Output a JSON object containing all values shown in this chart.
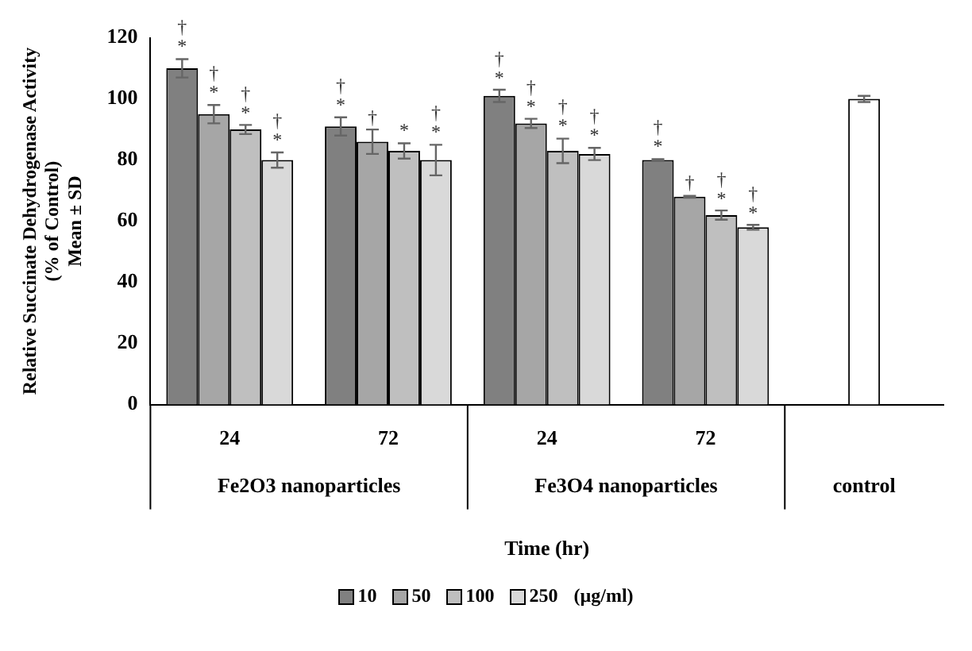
{
  "chart_data": {
    "type": "bar",
    "categories": [
      "24",
      "72",
      "24",
      "72",
      null
    ],
    "xlabel": "Time (hr)",
    "ylabel": "Relative Succinate Dehydrogenase Activity\n(% of Control)\nMean ± SD",
    "legend_title": "(µg/ml)",
    "annotations": [
      "Fe2O3 nanoparticles",
      "Fe3O4 nanoparticles",
      "control"
    ],
    "series": [
      {
        "name": "10",
        "color": "#808080",
        "values": [
          110,
          91,
          101,
          80,
          null
        ],
        "errors": [
          3,
          3,
          2,
          0.3,
          null
        ],
        "value_labels": [
          "†\n*",
          "†\n*",
          "†\n*",
          "†\n*",
          null
        ]
      },
      {
        "name": "50",
        "color": "#a6a6a6",
        "values": [
          95,
          86,
          92,
          68,
          null
        ],
        "errors": [
          3,
          4,
          1.5,
          0.3,
          null
        ],
        "value_labels": [
          "†\n*",
          "†",
          "†\n*",
          "†",
          null
        ]
      },
      {
        "name": "100",
        "color": "#bfbfbf",
        "values": [
          90,
          83,
          83,
          62,
          null
        ],
        "errors": [
          1.5,
          2.5,
          4,
          1.5,
          null
        ],
        "value_labels": [
          "†\n*",
          "*",
          "†\n*",
          "†\n*",
          null
        ]
      },
      {
        "name": "250",
        "color": "#d9d9d9",
        "values": [
          80,
          80,
          82,
          58,
          null
        ],
        "errors": [
          2.5,
          5,
          2,
          0.8,
          null
        ],
        "value_labels": [
          "†\n*",
          "†\n*",
          "†\n*",
          "†\n*",
          null
        ]
      },
      {
        "color": "#ffffff",
        "values": [
          null,
          null,
          null,
          null,
          100
        ],
        "errors": [
          null,
          null,
          null,
          null,
          1
        ],
        "value_labels": [
          null,
          null,
          null,
          null,
          null
        ]
      }
    ],
    "ylim": [
      0,
      120
    ],
    "yticks": [
      0,
      20,
      40,
      60,
      80,
      100,
      120
    ],
    "grid": false,
    "legend": "bottom"
  }
}
